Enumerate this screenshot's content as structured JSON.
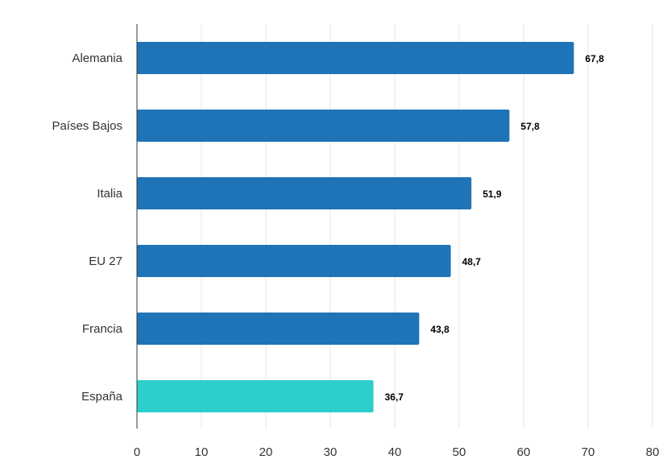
{
  "chart_data": {
    "type": "bar",
    "orientation": "horizontal",
    "categories": [
      "Alemania",
      "Países Bajos",
      "Italia",
      "EU 27",
      "Francia",
      "España"
    ],
    "values": [
      67.8,
      57.8,
      51.9,
      48.7,
      43.8,
      36.7
    ],
    "value_labels": [
      "67,8",
      "57,8",
      "51,9",
      "48,7",
      "43,8",
      "36,7"
    ],
    "xlim": [
      0,
      80
    ],
    "xticks": [
      0,
      10,
      20,
      30,
      40,
      50,
      60,
      70,
      80
    ],
    "grid": "vertical",
    "title": "",
    "xlabel": "",
    "ylabel": "",
    "colors": {
      "default_bar": "#1f73b7",
      "highlight_bar": "#2ecfcb",
      "grid": "#e6e6e6",
      "axis": "#333333"
    },
    "highlight_category": "España"
  }
}
